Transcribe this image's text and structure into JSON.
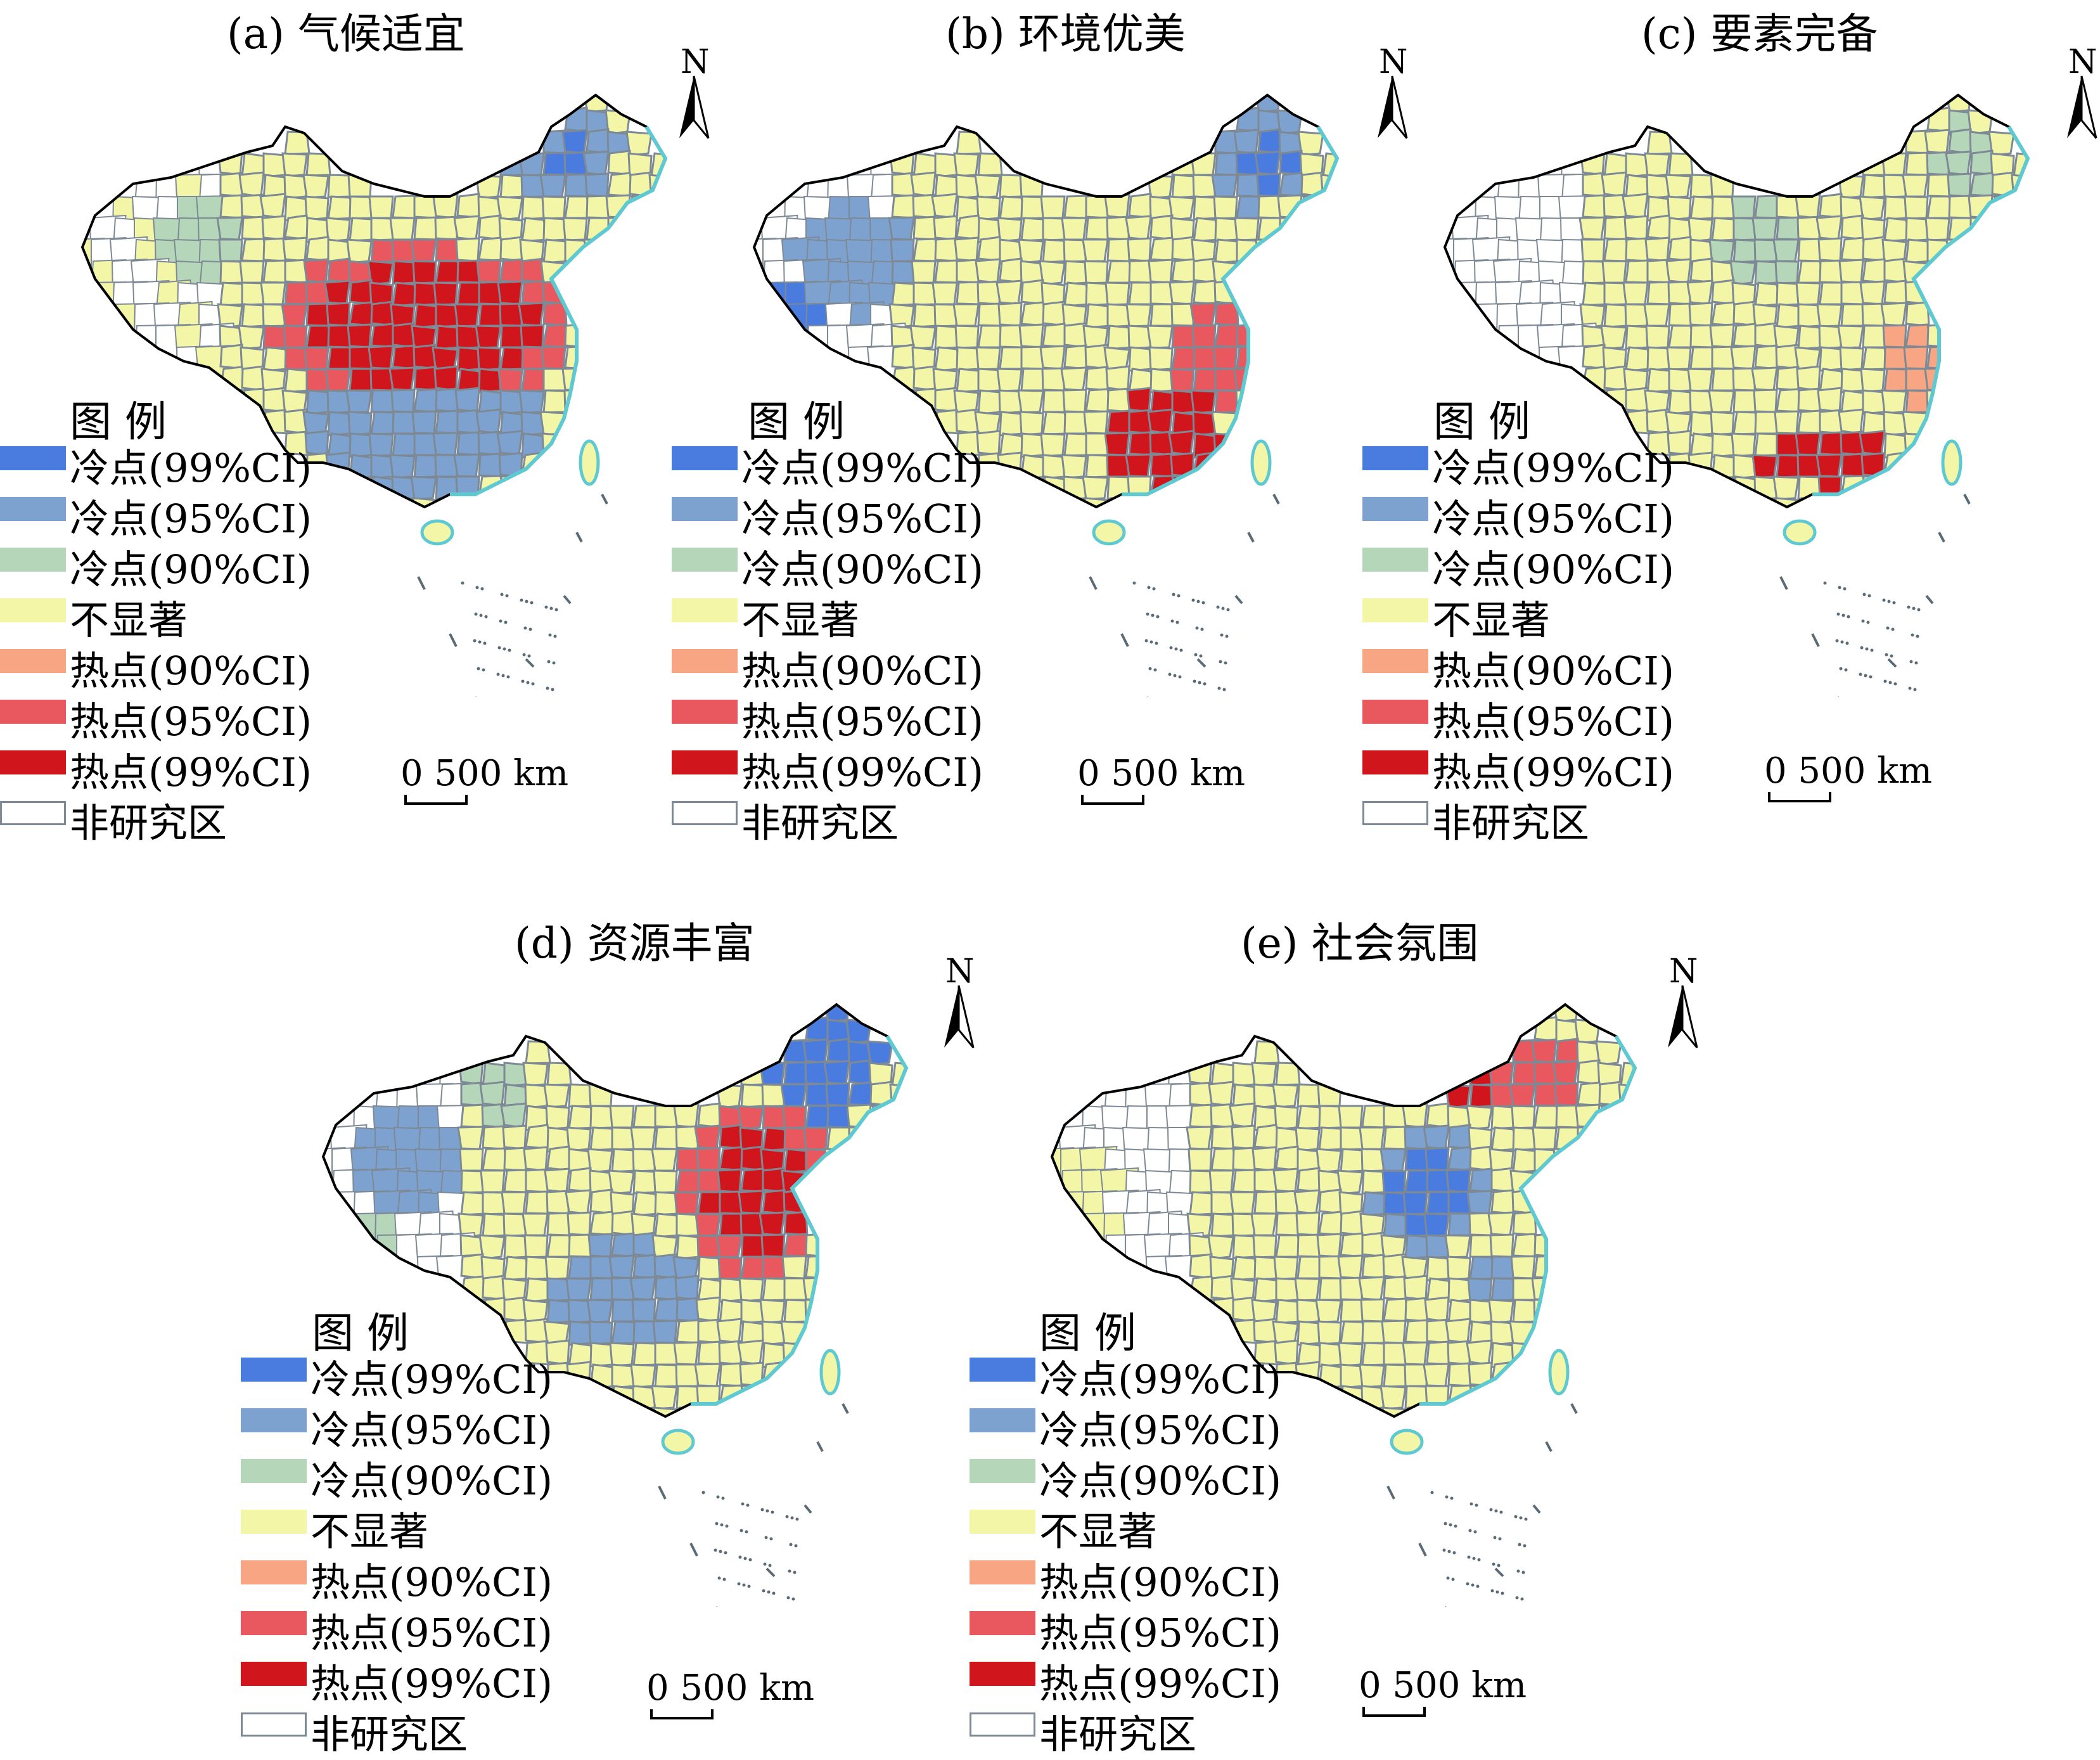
{
  "legend": {
    "title": "图 例",
    "items": [
      {
        "label": "冷点(99%CI)",
        "color": "#4a7bde"
      },
      {
        "label": "冷点(95%CI)",
        "color": "#7ea2d0"
      },
      {
        "label": "冷点(90%CI)",
        "color": "#b5d6b8"
      },
      {
        "label": "不显著",
        "color": "#f3f6a6"
      },
      {
        "label": "热点(90%CI)",
        "color": "#f7a583"
      },
      {
        "label": "热点(95%CI)",
        "color": "#e8585e"
      },
      {
        "label": "热点(99%CI)",
        "color": "#d0161c"
      },
      {
        "label": "非研究区",
        "color": "#ffffff"
      }
    ]
  },
  "north_label": "N",
  "scale_label": "0  500 km",
  "border_color": "#7d8a96",
  "coast_color": "#5fc9d2",
  "panels": [
    {
      "id": "a",
      "title": "(a) 气候适宜",
      "pattern": "climate"
    },
    {
      "id": "b",
      "title": "(b) 环境优美",
      "pattern": "environment"
    },
    {
      "id": "c",
      "title": "(c) 要素完备",
      "pattern": "elements"
    },
    {
      "id": "d",
      "title": "(d) 资源丰富",
      "pattern": "resources"
    },
    {
      "id": "e",
      "title": "(e) 社会氛围",
      "pattern": "social"
    }
  ]
}
